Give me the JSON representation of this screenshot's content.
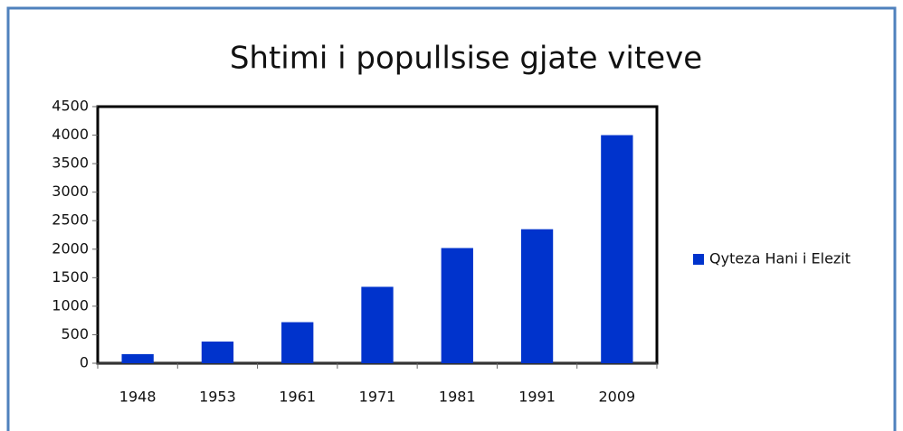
{
  "chart_data": {
    "type": "bar",
    "title": "Shtimi i popullsise gjate viteve",
    "categories": [
      "1948",
      "1953",
      "1961",
      "1971",
      "1981",
      "1991",
      "2009"
    ],
    "series": [
      {
        "name": "Qyteza Hani i Elezit",
        "color": "#0033cc",
        "values": [
          160,
          380,
          720,
          1340,
          2020,
          2350,
          4000
        ]
      }
    ],
    "ylim": [
      0,
      4500
    ],
    "yticks": [
      0,
      500,
      1000,
      1500,
      2000,
      2500,
      3000,
      3500,
      4000,
      4500
    ],
    "grid": false,
    "legend": "right"
  }
}
